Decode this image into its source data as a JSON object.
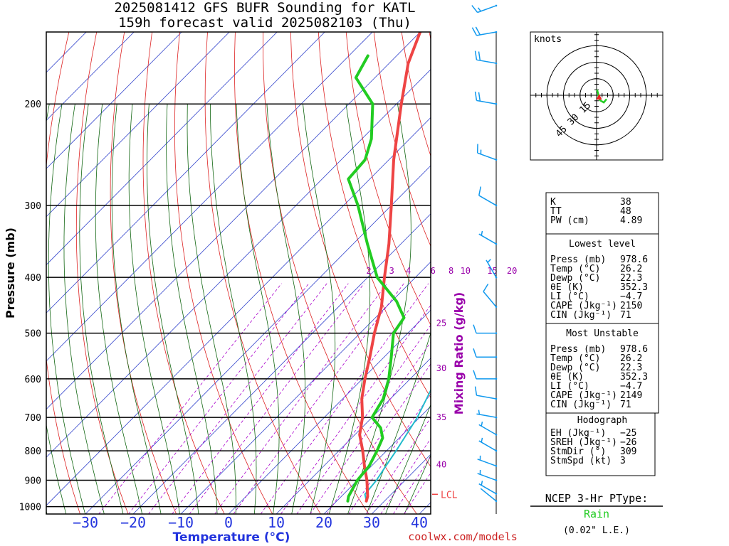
{
  "header": {
    "title_line1": "2025081412 GFS BUFR Sounding for KATL",
    "title_line2": "159h forecast valid 2025082103 (Thu)"
  },
  "colors": {
    "temperature": "#ee4444",
    "dewpoint": "#22cc22",
    "parcel": "#22bbcc",
    "isotherm": "#3344cc",
    "dry_adiabat": "#dd2222",
    "moist_adiabat": "#116611",
    "mixing_ratio": "#aa00cc",
    "wind": "#1199ee"
  },
  "chart_data": {
    "type": "line",
    "xlabel": "Temperature (°C)",
    "ylabel": "Pressure (mb)",
    "xlim": [
      -40,
      45
    ],
    "ylim": [
      1030,
      150
    ],
    "log_scale_y": true,
    "grid": true,
    "x_ticks": [
      -30,
      -20,
      -10,
      0,
      10,
      20,
      30,
      40
    ],
    "y_ticks": [
      1000,
      900,
      800,
      700,
      600,
      500,
      400,
      300,
      200
    ],
    "mixing_ratio_label": "Mixing Ratio (g/kg)",
    "mixing_ratio_values": [
      2,
      3,
      4,
      6,
      8,
      10,
      15,
      20
    ],
    "mixing_ratio_side_labels": [
      25,
      30,
      35,
      40
    ],
    "lcl_label": "LCL",
    "lcl_pressure": 952,
    "series": [
      {
        "name": "Temperature",
        "pressure": [
          978,
          960,
          900,
          850,
          800,
          750,
          700,
          650,
          600,
          550,
          500,
          450,
          400,
          350,
          300,
          250,
          200,
          170,
          150,
          135,
          125,
          115
        ],
        "values": [
          26.2,
          25.5,
          22,
          18.5,
          15,
          11,
          8,
          4,
          0.5,
          -3,
          -7,
          -11,
          -16.5,
          -22.5,
          -30,
          -39,
          -49,
          -56,
          -60,
          -62,
          -62,
          -63
        ]
      },
      {
        "name": "Dewpoint",
        "pressure": [
          978,
          960,
          900,
          850,
          800,
          760,
          730,
          700,
          650,
          600,
          550,
          500,
          470,
          440,
          400,
          350,
          300,
          270,
          250,
          230,
          200,
          180,
          165
        ],
        "values": [
          22.3,
          21.5,
          20,
          19.5,
          18,
          16.5,
          14,
          10,
          8.5,
          5.5,
          1.5,
          -3,
          -4,
          -9,
          -18,
          -27,
          -37,
          -44.5,
          -45,
          -48,
          -55,
          -64,
          -66
        ]
      },
      {
        "name": "Parcel",
        "pressure": [
          978,
          952,
          900,
          850,
          800,
          700,
          600,
          500,
          450,
          400,
          350,
          300,
          250,
          200,
          170,
          150,
          130,
          115
        ],
        "values": [
          26.2,
          24.5,
          24,
          23,
          22,
          19.5,
          15.5,
          10,
          7.5,
          3.5,
          -2.5,
          -10.5,
          -21.5,
          -36,
          -47,
          -56,
          -66,
          -75
        ]
      }
    ],
    "wind_profile": [
      {
        "p": 978,
        "dir": 309,
        "spd": 3
      },
      {
        "p": 950,
        "dir": 300,
        "spd": 5
      },
      {
        "p": 900,
        "dir": 290,
        "spd": 5
      },
      {
        "p": 850,
        "dir": 290,
        "spd": 5
      },
      {
        "p": 800,
        "dir": 300,
        "spd": 5
      },
      {
        "p": 750,
        "dir": 300,
        "spd": 5
      },
      {
        "p": 700,
        "dir": 280,
        "spd": 5
      },
      {
        "p": 650,
        "dir": 280,
        "spd": 10
      },
      {
        "p": 600,
        "dir": 270,
        "spd": 10
      },
      {
        "p": 550,
        "dir": 270,
        "spd": 10
      },
      {
        "p": 500,
        "dir": 270,
        "spd": 10
      },
      {
        "p": 450,
        "dir": 320,
        "spd": 10
      },
      {
        "p": 400,
        "dir": 330,
        "spd": 5
      },
      {
        "p": 350,
        "dir": 300,
        "spd": 5
      },
      {
        "p": 300,
        "dir": 300,
        "spd": 10
      },
      {
        "p": 250,
        "dir": 290,
        "spd": 15
      },
      {
        "p": 200,
        "dir": 280,
        "spd": 20
      },
      {
        "p": 170,
        "dir": 280,
        "spd": 20
      },
      {
        "p": 150,
        "dir": 260,
        "spd": 20
      },
      {
        "p": 135,
        "dir": 250,
        "spd": 15
      },
      {
        "p": 115,
        "dir": 240,
        "spd": 20
      }
    ],
    "hodograph": {
      "units_label": "knots",
      "ring_labels": [
        "15",
        "30",
        "45"
      ],
      "ring_speeds": [
        15,
        30,
        45
      ],
      "points": [
        {
          "u": 0.4,
          "v": 5.0
        },
        {
          "u": 1.5,
          "v": 1.5
        },
        {
          "u": 1.8,
          "v": -2.5
        },
        {
          "u": 3.0,
          "v": -4.5
        },
        {
          "u": 6.5,
          "v": -6.5
        },
        {
          "u": 9.0,
          "v": -3.5
        }
      ],
      "storm_motion": {
        "u": 2.3,
        "v": -1.9
      }
    }
  },
  "indices": {
    "top": [
      {
        "label": "K",
        "value": "38"
      },
      {
        "label": "TT",
        "value": "48"
      },
      {
        "label": "PW (cm)",
        "value": "4.89"
      }
    ],
    "lowest_title": "Lowest level",
    "lowest": [
      {
        "label": "Press (mb)",
        "value": "978.6"
      },
      {
        "label": "Temp (°C)",
        "value": "26.2"
      },
      {
        "label": "Dewp (°C)",
        "value": "22.3"
      },
      {
        "label": "θE (K)",
        "value": "352.3"
      },
      {
        "label": "LI (°C)",
        "value": "−4.7"
      },
      {
        "label": "CAPE (Jkg⁻¹)",
        "value": "2150"
      },
      {
        "label": "CIN (Jkg⁻¹)",
        "value": "71"
      }
    ],
    "unstable_title": "Most Unstable",
    "unstable": [
      {
        "label": "Press (mb)",
        "value": "978.6"
      },
      {
        "label": "Temp (°C)",
        "value": "26.2"
      },
      {
        "label": "Dewp (°C)",
        "value": "22.3"
      },
      {
        "label": "θE (K)",
        "value": "352.3"
      },
      {
        "label": "LI (°C)",
        "value": "−4.7"
      },
      {
        "label": "CAPE (Jkg⁻¹)",
        "value": "2149"
      },
      {
        "label": "CIN (Jkg⁻¹)",
        "value": "71"
      }
    ],
    "hodo_title": "Hodograph",
    "hodo": [
      {
        "label": "EH (Jkg⁻¹)",
        "value": "−25"
      },
      {
        "label": "SREH (Jkg⁻¹)",
        "value": "−26"
      },
      {
        "label": "StmDir (°)",
        "value": "309"
      },
      {
        "label": "StmSpd (kt)",
        "value": "3"
      }
    ]
  },
  "ptype": {
    "title": "NCEP 3-Hr PType:",
    "value": "Rain",
    "amount": "(0.02\" L.E.)"
  },
  "credit": "coolwx.com/models"
}
